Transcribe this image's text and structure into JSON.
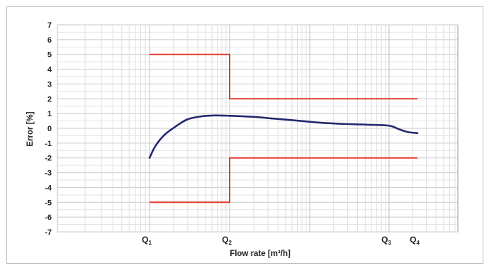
{
  "chart_data": {
    "type": "line",
    "xlabel": "Flow rate [m³/h]",
    "ylabel": "Error [%]",
    "ylim": [
      -7,
      7
    ],
    "yticks": [
      7,
      6,
      5,
      4,
      3,
      2,
      1,
      0,
      -1,
      -2,
      -3,
      -4,
      -5,
      -6,
      -7
    ],
    "x_scale": "log",
    "grid": true,
    "x_tick_labels": [
      {
        "base": "Q",
        "sub": "1"
      },
      {
        "base": "Q",
        "sub": "2"
      },
      {
        "base": "Q",
        "sub": "3"
      },
      {
        "base": "Q",
        "sub": "4"
      }
    ],
    "limits": {
      "color": "#e23b2a",
      "upper": [
        {
          "from": "Q1",
          "to": "Q2",
          "y": 5
        },
        {
          "from": "Q2",
          "to": "Q4",
          "y": 2
        }
      ],
      "lower": [
        {
          "from": "Q1",
          "to": "Q2",
          "y": -5
        },
        {
          "from": "Q2",
          "to": "Q4",
          "y": -2
        }
      ]
    },
    "curve": {
      "color": "#232a6e",
      "points": [
        [
          "Q1",
          -2.0
        ],
        [
          "",
          -1.2
        ],
        [
          "",
          -0.45
        ],
        [
          "",
          0.1
        ],
        [
          "",
          0.6
        ],
        [
          "",
          0.8
        ],
        [
          "",
          0.87
        ],
        [
          "Q2",
          0.85
        ],
        [
          "",
          0.78
        ],
        [
          "",
          0.65
        ],
        [
          "",
          0.52
        ],
        [
          "",
          0.38
        ],
        [
          "",
          0.3
        ],
        [
          "",
          0.25
        ],
        [
          "Q3",
          0.18
        ],
        [
          "",
          -0.05
        ],
        [
          "",
          -0.25
        ],
        [
          "Q4",
          -0.32
        ]
      ]
    }
  }
}
